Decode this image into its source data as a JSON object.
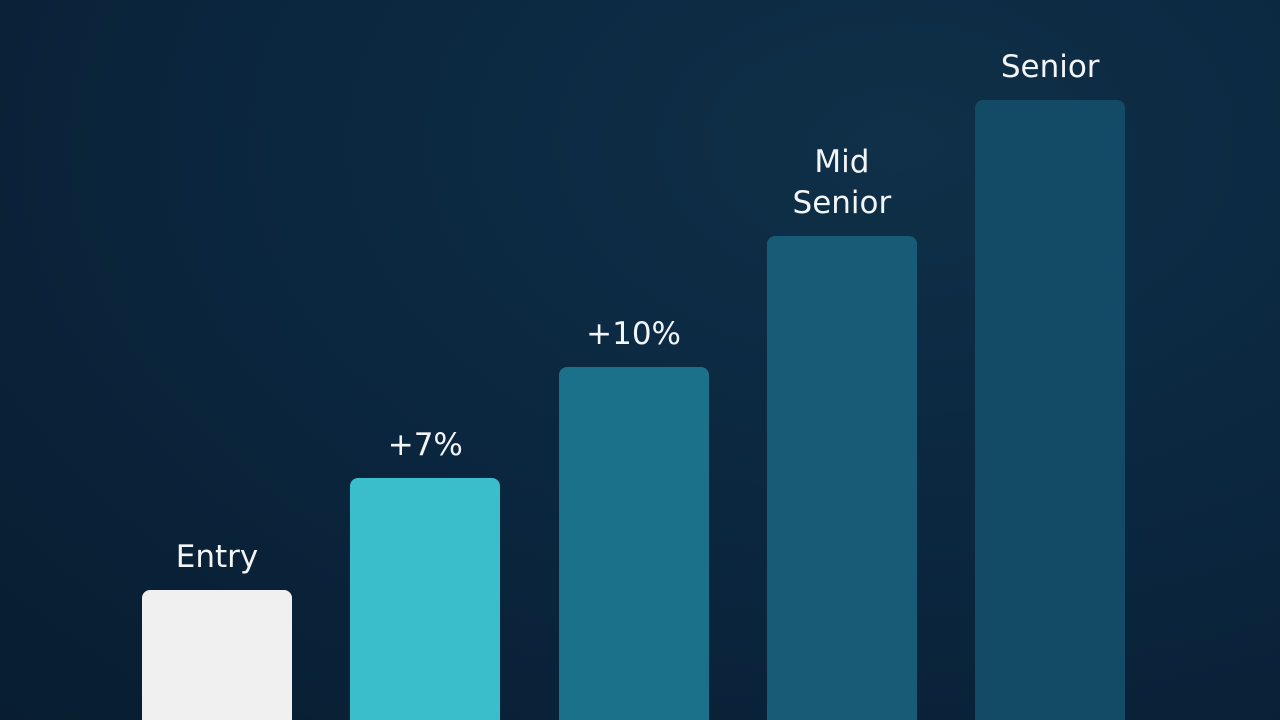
{
  "chart_data": {
    "type": "bar",
    "categories": [
      "Entry",
      "+7%",
      "+10%",
      "Mid Senior",
      "Senior"
    ],
    "values": [
      21,
      39,
      57,
      78,
      100
    ],
    "colors": [
      "#f0f0f0",
      "#3bbecb",
      "#1b7189",
      "#175b76",
      "#134a65"
    ],
    "ylim": [
      0,
      100
    ]
  }
}
